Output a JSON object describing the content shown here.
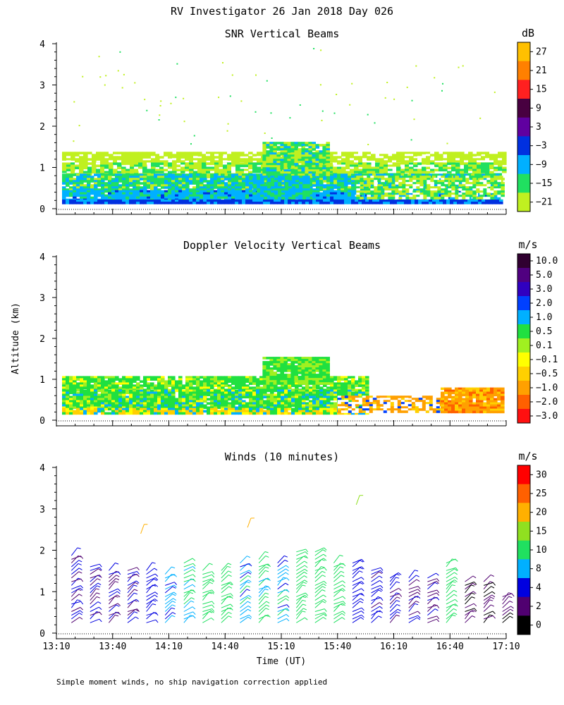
{
  "figure": {
    "title": "RV Investigator  26 Jan 2018 Day 026",
    "ylabel": "Altitude (km)",
    "xlabel": "Time (UT)",
    "footnote": "Simple moment winds, no ship navigation correction applied"
  },
  "chart_data": [
    {
      "type": "heatmap",
      "title": "SNR Vertical Beams",
      "colorbar_unit": "dB",
      "colorbar_ticks": [
        "27",
        "21",
        "15",
        "9",
        "3",
        "−3",
        "−9",
        "−15",
        "−21"
      ],
      "colorbar_colors": [
        "#ffc000",
        "#ff8000",
        "#ff2020",
        "#480040",
        "#6000a0",
        "#0030e0",
        "#00b0ff",
        "#20e060",
        "#c0f020"
      ],
      "xlim": [
        "13:10",
        "17:10"
      ],
      "ylim": [
        0,
        4
      ],
      "yticks": [
        "0",
        "1",
        "2",
        "3",
        "4"
      ],
      "data_top_km": {
        "13:10": 1.35,
        "14:50": 1.4,
        "15:10": 1.6,
        "15:30": 1.5,
        "16:00": 1.35,
        "17:00": 1.35
      },
      "description_layers": [
        {
          "altitude_km": [
            0.1,
            0.25
          ],
          "value_db": -3
        },
        {
          "altitude_km": [
            0.25,
            0.8
          ],
          "value_db": -9
        },
        {
          "altitude_km": [
            0.8,
            1.1
          ],
          "value_db": -15
        },
        {
          "altitude_km": [
            1.1,
            1.4
          ],
          "value_db": -21
        }
      ]
    },
    {
      "type": "heatmap",
      "title": "Doppler Velocity Vertical Beams",
      "colorbar_unit": "m/s",
      "colorbar_ticks": [
        "10.0",
        "5.0",
        "3.0",
        "2.0",
        "1.0",
        "0.5",
        "0.1",
        "−0.1",
        "−0.5",
        "−1.0",
        "−2.0",
        "−3.0"
      ],
      "colorbar_colors": [
        "#300030",
        "#500080",
        "#3000c0",
        "#0040ff",
        "#00b0ff",
        "#20e040",
        "#a0f020",
        "#ffff00",
        "#ffd000",
        "#ffa000",
        "#ff6000",
        "#ff1010"
      ],
      "xlim": [
        "13:10",
        "17:10"
      ],
      "ylim": [
        0,
        4
      ],
      "yticks": [
        "0",
        "1",
        "2",
        "3",
        "4"
      ],
      "regions": [
        {
          "time": [
            "13:10",
            "15:55"
          ],
          "altitude_km": [
            0.2,
            1.1
          ],
          "value_ms": 0.5
        },
        {
          "time": [
            "15:00",
            "15:35"
          ],
          "altitude_km": [
            0.2,
            1.55
          ],
          "value_ms": 0.5
        },
        {
          "time": [
            "15:55",
            "16:35"
          ],
          "altitude_km": [
            0.2,
            0.6
          ],
          "value_ms": -0.5
        },
        {
          "time": [
            "16:35",
            "17:10"
          ],
          "altitude_km": [
            0.2,
            0.8
          ],
          "value_ms": -1.0
        }
      ]
    },
    {
      "type": "wind_barbs",
      "title": "Winds (10 minutes)",
      "colorbar_unit": "m/s",
      "colorbar_ticks": [
        "30",
        "25",
        "20",
        "15",
        "10",
        "8",
        "4",
        "2",
        "0"
      ],
      "colorbar_colors": [
        "#ff0000",
        "#ff6000",
        "#ffb000",
        "#90e020",
        "#20e060",
        "#00b0ff",
        "#0000e0",
        "#500070",
        "#000000"
      ],
      "xlim": [
        "13:10",
        "17:10"
      ],
      "ylim": [
        0,
        4
      ],
      "yticks": [
        "0",
        "1",
        "2",
        "3",
        "4"
      ],
      "xticks": [
        "13:10",
        "13:40",
        "14:10",
        "14:40",
        "15:10",
        "15:40",
        "16:10",
        "16:40",
        "17:10"
      ],
      "profiles": [
        {
          "time": "13:18",
          "top_km": 1.95,
          "speed_ms": 4
        },
        {
          "time": "13:28",
          "top_km": 1.65,
          "speed_ms": 4
        },
        {
          "time": "13:38",
          "top_km": 1.6,
          "speed_ms": 4
        },
        {
          "time": "13:48",
          "top_km": 1.55,
          "speed_ms": 4
        },
        {
          "time": "13:58",
          "top_km": 1.55,
          "speed_ms": 6
        },
        {
          "time": "14:08",
          "top_km": 1.5,
          "speed_ms": 8
        },
        {
          "time": "14:18",
          "top_km": 1.75,
          "speed_ms": 10
        },
        {
          "time": "14:28",
          "top_km": 1.55,
          "speed_ms": 12
        },
        {
          "time": "14:38",
          "top_km": 1.55,
          "speed_ms": 12
        },
        {
          "time": "14:48",
          "top_km": 1.75,
          "speed_ms": 9
        },
        {
          "time": "14:58",
          "top_km": 1.85,
          "speed_ms": 10
        },
        {
          "time": "15:08",
          "top_km": 1.75,
          "speed_ms": 9
        },
        {
          "time": "15:18",
          "top_km": 2.05,
          "speed_ms": 12
        },
        {
          "time": "15:28",
          "top_km": 2.05,
          "speed_ms": 12
        },
        {
          "time": "15:38",
          "top_km": 1.7,
          "speed_ms": 12
        },
        {
          "time": "15:48",
          "top_km": 1.75,
          "speed_ms": 6
        },
        {
          "time": "15:58",
          "top_km": 1.6,
          "speed_ms": 5
        },
        {
          "time": "16:08",
          "top_km": 1.4,
          "speed_ms": 5
        },
        {
          "time": "16:18",
          "top_km": 1.35,
          "speed_ms": 4
        },
        {
          "time": "16:28",
          "top_km": 1.35,
          "speed_ms": 4
        },
        {
          "time": "16:38",
          "top_km": 1.75,
          "speed_ms": 12
        },
        {
          "time": "16:48",
          "top_km": 1.25,
          "speed_ms": 2
        },
        {
          "time": "16:58",
          "top_km": 1.3,
          "speed_ms": 2
        },
        {
          "time": "17:08",
          "top_km": 0.95,
          "speed_ms": 3
        }
      ],
      "outliers": [
        {
          "time": "13:55",
          "altitude_km": 2.4,
          "speed_ms": 22
        },
        {
          "time": "14:52",
          "altitude_km": 2.55,
          "speed_ms": 22
        },
        {
          "time": "15:50",
          "altitude_km": 3.1,
          "speed_ms": 18
        }
      ]
    }
  ]
}
